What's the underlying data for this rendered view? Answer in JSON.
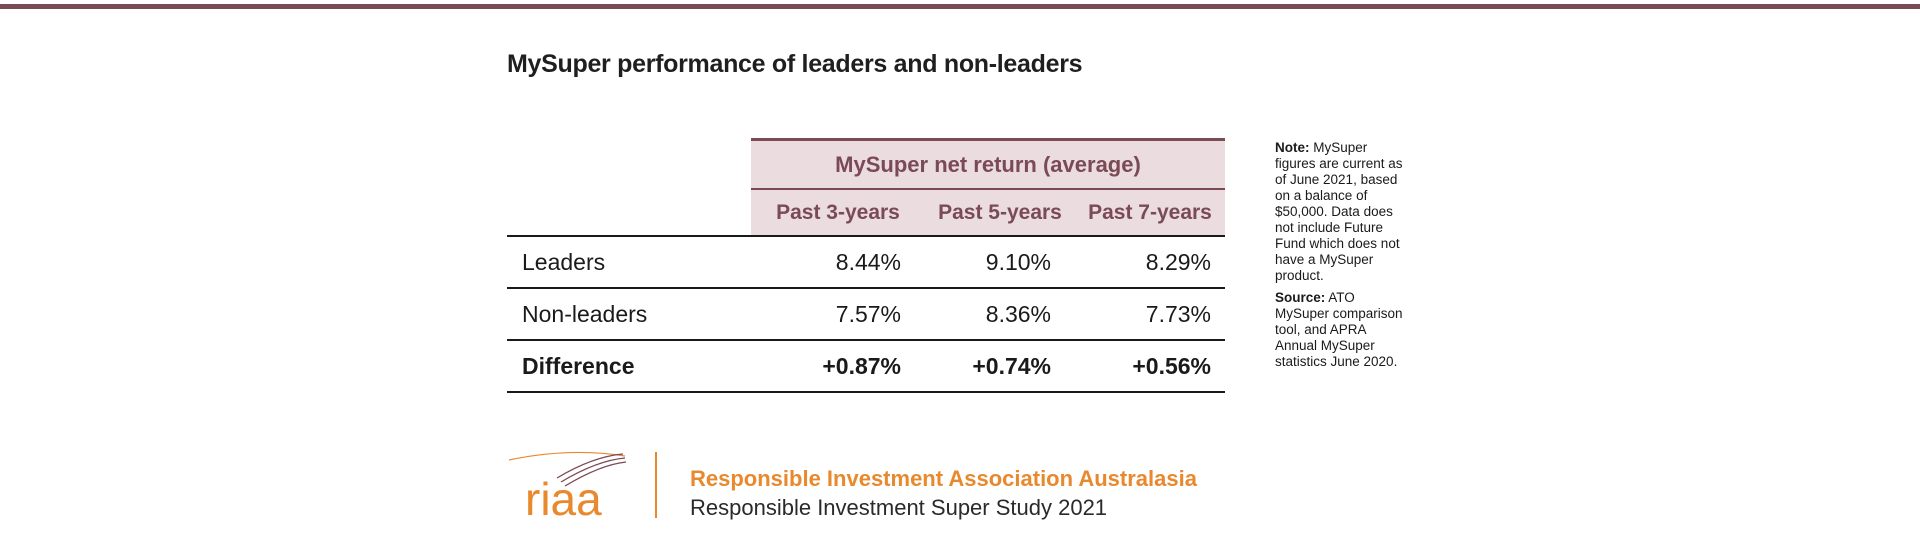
{
  "title": "MySuper performance of leaders and non-leaders",
  "table": {
    "group_header": "MySuper net return (average)",
    "columns": [
      "Past 3-years",
      "Past 5-years",
      "Past 7-years"
    ],
    "rows": [
      {
        "label": "Leaders",
        "values": [
          "8.44%",
          "9.10%",
          "8.29%"
        ]
      },
      {
        "label": "Non-leaders",
        "values": [
          "7.57%",
          "8.36%",
          "7.73%"
        ]
      },
      {
        "label": "Difference",
        "values": [
          "+0.87%",
          "+0.74%",
          "+0.56%"
        ]
      }
    ]
  },
  "note": {
    "note_label": "Note:",
    "note_text": "MySuper figures are current as of June 2021, based on a balance of $50,000. Data does not include Future Fund which does not have a MySuper product.",
    "source_label": "Source:",
    "source_text": "ATO MySuper comparison tool, and APRA Annual MySuper statistics June 2020."
  },
  "footer": {
    "logo_text": "riaa",
    "organization": "Responsible Investment Association Australasia",
    "study": "Responsible Investment Super Study 2021"
  },
  "colors": {
    "accent": "#7a4a55",
    "header_bg": "#eadcdf",
    "orange": "#e8892e"
  }
}
